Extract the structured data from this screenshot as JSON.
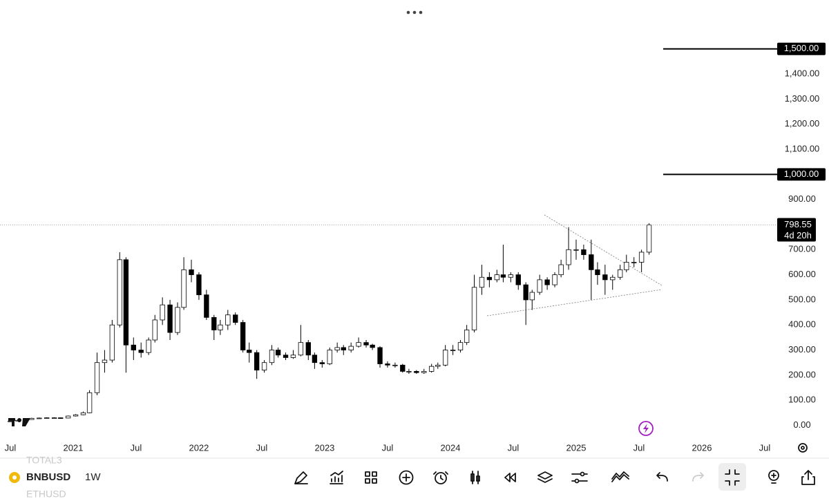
{
  "chart_data": {
    "type": "candlestick",
    "x": [
      2020.5,
      2020.56,
      2020.62,
      2020.67,
      2020.73,
      2020.79,
      2020.85,
      2020.9,
      2020.96,
      2021.02,
      2021.08,
      2021.13,
      2021.19,
      2021.25,
      2021.31,
      2021.37,
      2021.42,
      2021.48,
      2021.54,
      2021.6,
      2021.65,
      2021.71,
      2021.77,
      2021.83,
      2021.88,
      2021.94,
      2022,
      2022.06,
      2022.12,
      2022.17,
      2022.23,
      2022.29,
      2022.35,
      2022.4,
      2022.46,
      2022.52,
      2022.58,
      2022.63,
      2022.69,
      2022.75,
      2022.81,
      2022.87,
      2022.92,
      2022.98,
      2023.04,
      2023.1,
      2023.15,
      2023.21,
      2023.27,
      2023.33,
      2023.38,
      2023.44,
      2023.5,
      2023.56,
      2023.62,
      2023.67,
      2023.73,
      2023.79,
      2023.85,
      2023.9,
      2023.96,
      2024.02,
      2024.08,
      2024.13,
      2024.19,
      2024.25,
      2024.31,
      2024.37,
      2024.42,
      2024.48,
      2024.54,
      2024.6,
      2024.65,
      2024.71,
      2024.77,
      2024.83,
      2024.88,
      2024.94,
      2025,
      2025.06,
      2025.12,
      2025.17,
      2025.23,
      2025.29,
      2025.35,
      2025.4,
      2025.46,
      2025.52,
      2025.58
    ],
    "open": [
      15,
      17,
      20,
      23,
      28,
      29,
      30,
      30,
      29,
      37,
      42,
      50,
      130,
      250,
      260,
      400,
      660,
      320,
      300,
      290,
      340,
      420,
      480,
      370,
      470,
      620,
      600,
      520,
      430,
      380,
      400,
      440,
      410,
      300,
      290,
      220,
      250,
      300,
      280,
      270,
      280,
      330,
      280,
      250,
      245,
      300,
      310,
      300,
      315,
      330,
      320,
      310,
      245,
      240,
      240,
      215,
      215,
      210,
      215,
      235,
      240,
      300,
      300,
      330,
      380,
      550,
      590,
      580,
      600,
      590,
      600,
      560,
      500,
      530,
      580,
      560,
      600,
      640,
      700,
      700,
      680,
      620,
      600,
      580,
      590,
      620,
      650,
      650,
      690
    ],
    "high": [
      18,
      21,
      24,
      30,
      31,
      32,
      32,
      31,
      39,
      45,
      55,
      140,
      290,
      300,
      420,
      690,
      670,
      350,
      330,
      350,
      440,
      510,
      500,
      490,
      670,
      660,
      610,
      540,
      440,
      420,
      460,
      450,
      420,
      330,
      300,
      260,
      320,
      310,
      290,
      300,
      400,
      340,
      290,
      260,
      310,
      330,
      320,
      330,
      350,
      340,
      325,
      315,
      255,
      250,
      245,
      225,
      220,
      225,
      245,
      250,
      320,
      320,
      340,
      400,
      600,
      640,
      610,
      620,
      720,
      610,
      610,
      570,
      540,
      600,
      590,
      610,
      660,
      790,
      740,
      720,
      740,
      650,
      640,
      600,
      640,
      680,
      670,
      700,
      805
    ],
    "low": [
      14,
      16,
      19,
      22,
      26,
      27,
      28,
      27,
      28,
      35,
      40,
      48,
      120,
      210,
      250,
      390,
      210,
      260,
      270,
      280,
      330,
      400,
      340,
      360,
      460,
      570,
      500,
      420,
      340,
      360,
      380,
      400,
      290,
      250,
      185,
      210,
      240,
      270,
      260,
      265,
      275,
      260,
      225,
      230,
      240,
      290,
      280,
      290,
      310,
      310,
      300,
      230,
      230,
      230,
      210,
      205,
      205,
      205,
      210,
      225,
      235,
      280,
      290,
      320,
      370,
      520,
      550,
      570,
      570,
      570,
      540,
      400,
      460,
      520,
      540,
      550,
      590,
      620,
      660,
      660,
      500,
      560,
      520,
      540,
      580,
      610,
      630,
      610,
      680
    ],
    "close": [
      17,
      20,
      23,
      28,
      29,
      30,
      30,
      29,
      37,
      42,
      50,
      130,
      250,
      260,
      400,
      660,
      320,
      300,
      290,
      340,
      420,
      480,
      370,
      470,
      620,
      600,
      520,
      430,
      380,
      400,
      440,
      410,
      300,
      290,
      220,
      250,
      300,
      280,
      270,
      280,
      330,
      280,
      250,
      245,
      300,
      310,
      300,
      315,
      330,
      320,
      310,
      245,
      240,
      240,
      215,
      215,
      210,
      215,
      235,
      240,
      300,
      300,
      330,
      380,
      550,
      590,
      580,
      600,
      590,
      600,
      560,
      500,
      530,
      580,
      560,
      600,
      640,
      700,
      700,
      680,
      620,
      600,
      580,
      590,
      620,
      650,
      650,
      690,
      798.55
    ],
    "up_color": "#ffffff",
    "down_color": "#000000",
    "xlim": [
      2020.418,
      2027.011
    ],
    "xticks": [
      {
        "value": 2020.5,
        "label": "Jul"
      },
      2021,
      {
        "value": 2021.5,
        "label": "Jul"
      },
      2022,
      {
        "value": 2022.5,
        "label": "Jul"
      },
      2023,
      {
        "value": 2023.5,
        "label": "Jul"
      },
      2024,
      {
        "value": 2024.5,
        "label": "Jul"
      },
      2025,
      {
        "value": 2025.5,
        "label": "Jul"
      },
      2026,
      {
        "value": 2026.5,
        "label": "Jul"
      }
    ],
    "ylim": [
      -40,
      1695
    ],
    "yticks": [
      {
        "value": 0,
        "label": "0.00"
      },
      {
        "value": 100,
        "label": "100.00"
      },
      {
        "value": 200,
        "label": "200.00"
      },
      {
        "value": 300,
        "label": "300.00"
      },
      {
        "value": 400,
        "label": "400.00"
      },
      {
        "value": 500,
        "label": "500.00"
      },
      {
        "value": 600,
        "label": "600.00"
      },
      {
        "value": 700,
        "label": "700.00"
      },
      {
        "value": 900,
        "label": "900.00"
      },
      {
        "value": 1100,
        "label": "1,100.00"
      },
      {
        "value": 1200,
        "label": "1,200.00"
      },
      {
        "value": 1300,
        "label": "1,300.00"
      },
      {
        "value": 1400,
        "label": "1,400.00"
      }
    ],
    "price_lines": [
      {
        "value": 1500,
        "label": "1,500.00"
      },
      {
        "value": 1000,
        "label": "1,000.00"
      }
    ],
    "countdown": "4d 20h"
  },
  "toolbar": {
    "symbol": "BNBUSD",
    "interval": "1W",
    "symbol_above": "TOTAL3",
    "symbol_below": "ETHUSD"
  }
}
